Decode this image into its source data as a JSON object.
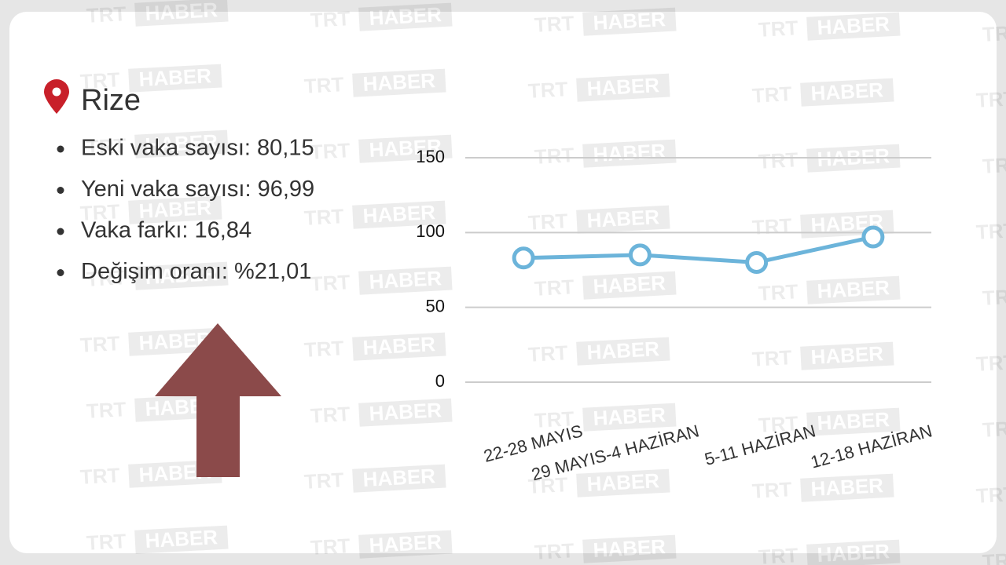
{
  "chart_data": {
    "type": "line",
    "title": "Rize",
    "notes": [
      "Eski vaka sayısı: 80,15",
      "Yeni vaka sayısı: 96,99",
      "Vaka farkı: 16,84",
      "Değişim oranı: %21,01"
    ],
    "categories": [
      "22-28 MAYIS",
      "29 MAYIS-4 HAZİRAN",
      "5-11 HAZİRAN",
      "12-18 HAZİRAN"
    ],
    "values": [
      83,
      85,
      80,
      97
    ],
    "color": "#6cb4da",
    "ylim": [
      0,
      150
    ],
    "yticks": [
      0,
      50,
      100,
      150
    ],
    "grid": true,
    "watermark": [
      "TRT",
      "HABER"
    ]
  }
}
